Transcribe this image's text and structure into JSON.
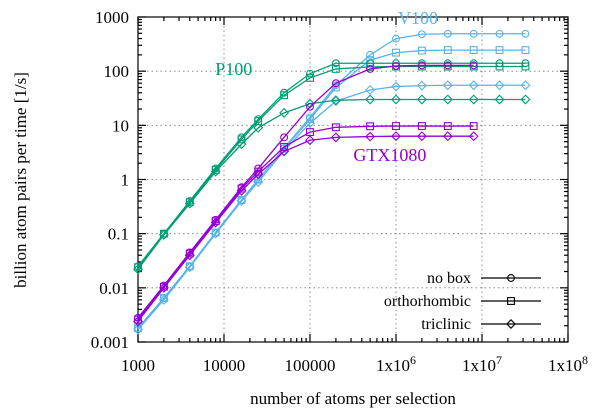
{
  "chart_data": {
    "type": "line",
    "xlabel": "number of atoms per selection",
    "ylabel": "billion atom pairs per time [1/s]",
    "xscale": "log",
    "yscale": "log",
    "xlim": [
      1000,
      100000000
    ],
    "ylim": [
      0.001,
      1000
    ],
    "grid": true,
    "legend_position": "bottom-right",
    "x_ticks": [
      {
        "value": 1000,
        "base": "1000",
        "exp": ""
      },
      {
        "value": 10000,
        "base": "10000",
        "exp": ""
      },
      {
        "value": 100000,
        "base": "100000",
        "exp": ""
      },
      {
        "value": 1000000,
        "base": "1x10",
        "exp": "6"
      },
      {
        "value": 10000000,
        "base": "1x10",
        "exp": "7"
      },
      {
        "value": 100000000,
        "base": "1x10",
        "exp": "8"
      }
    ],
    "y_ticks": [
      {
        "value": 0.001,
        "label": "0.001"
      },
      {
        "value": 0.01,
        "label": "0.01"
      },
      {
        "value": 0.1,
        "label": "0.1"
      },
      {
        "value": 1,
        "label": "1"
      },
      {
        "value": 10,
        "label": "10"
      },
      {
        "value": 100,
        "label": "100"
      },
      {
        "value": 1000,
        "label": "1000"
      }
    ],
    "legend": [
      {
        "label": "no box",
        "marker": "circle"
      },
      {
        "label": "orthorhombic",
        "marker": "square"
      },
      {
        "label": "triclinic",
        "marker": "diamond"
      }
    ],
    "gpu_labels": [
      {
        "text": "V100",
        "color": "#56b4e9",
        "x": 1800000,
        "y": 750
      },
      {
        "text": "P100",
        "color": "#009e73",
        "x": 13000,
        "y": 85
      },
      {
        "text": "GTX1080",
        "color": "#9400d3",
        "x": 850000,
        "y": 2.2
      }
    ],
    "series": [
      {
        "gpu": "V100",
        "box": "no box",
        "marker": "circle",
        "color": "#56b4e9",
        "x": [
          1000,
          2000,
          4000,
          8000,
          16000,
          25000,
          50000,
          100000,
          200000,
          500000,
          1000000,
          2000000,
          4000000,
          8000000,
          16000000,
          32000000
        ],
        "y": [
          0.0018,
          0.0065,
          0.025,
          0.105,
          0.42,
          1.0,
          3.8,
          14,
          55,
          200,
          400,
          480,
          490,
          490,
          490,
          490
        ]
      },
      {
        "gpu": "V100",
        "box": "orthorhombic",
        "marker": "square",
        "color": "#56b4e9",
        "x": [
          1000,
          2000,
          4000,
          8000,
          16000,
          25000,
          50000,
          100000,
          200000,
          500000,
          1000000,
          2000000,
          4000000,
          8000000,
          16000000,
          32000000
        ],
        "y": [
          0.0018,
          0.0065,
          0.025,
          0.105,
          0.42,
          1.0,
          3.7,
          13,
          50,
          160,
          220,
          240,
          245,
          245,
          245,
          245
        ]
      },
      {
        "gpu": "V100",
        "box": "triclinic",
        "marker": "diamond",
        "color": "#56b4e9",
        "x": [
          1000,
          2000,
          4000,
          8000,
          16000,
          25000,
          50000,
          100000,
          200000,
          500000,
          1000000,
          2000000,
          4000000,
          8000000,
          16000000,
          32000000
        ],
        "y": [
          0.0017,
          0.006,
          0.024,
          0.1,
          0.4,
          0.9,
          3.4,
          11,
          28,
          45,
          52,
          54,
          55,
          55,
          55,
          55
        ]
      },
      {
        "gpu": "P100",
        "box": "no box",
        "marker": "circle",
        "color": "#009e73",
        "x": [
          1000,
          2000,
          4000,
          8000,
          16000,
          25000,
          50000,
          100000,
          200000,
          500000,
          1000000,
          2000000,
          4000000,
          8000000,
          16000000,
          32000000
        ],
        "y": [
          0.025,
          0.1,
          0.4,
          1.6,
          6.0,
          13,
          40,
          90,
          140,
          140,
          140,
          140,
          140,
          140,
          140,
          140
        ]
      },
      {
        "gpu": "P100",
        "box": "orthorhombic",
        "marker": "square",
        "color": "#009e73",
        "x": [
          1000,
          2000,
          4000,
          8000,
          16000,
          25000,
          50000,
          100000,
          200000,
          500000,
          1000000,
          2000000,
          4000000,
          8000000,
          16000000,
          32000000
        ],
        "y": [
          0.024,
          0.1,
          0.38,
          1.5,
          5.5,
          12,
          36,
          75,
          110,
          120,
          122,
          122,
          122,
          122,
          122,
          122
        ]
      },
      {
        "gpu": "P100",
        "box": "triclinic",
        "marker": "diamond",
        "color": "#009e73",
        "x": [
          1000,
          2000,
          4000,
          8000,
          16000,
          25000,
          50000,
          100000,
          200000,
          500000,
          1000000,
          2000000,
          4000000,
          8000000,
          16000000,
          32000000
        ],
        "y": [
          0.022,
          0.095,
          0.36,
          1.4,
          4.5,
          9,
          17,
          25,
          29,
          30,
          30,
          30,
          30,
          30,
          30,
          30
        ]
      },
      {
        "gpu": "GTX1080",
        "box": "no box",
        "marker": "circle",
        "color": "#9400d3",
        "x": [
          1000,
          2000,
          4000,
          8000,
          16000,
          25000,
          50000,
          100000,
          200000,
          500000,
          1000000,
          2000000,
          4000000,
          8000000
        ],
        "y": [
          0.0028,
          0.011,
          0.045,
          0.18,
          0.72,
          1.6,
          6.0,
          22,
          60,
          110,
          125,
          128,
          128,
          128
        ]
      },
      {
        "gpu": "GTX1080",
        "box": "orthorhombic",
        "marker": "square",
        "color": "#9400d3",
        "x": [
          1000,
          2000,
          4000,
          8000,
          16000,
          25000,
          50000,
          100000,
          200000,
          500000,
          1000000,
          2000000,
          4000000,
          8000000
        ],
        "y": [
          0.0026,
          0.0105,
          0.043,
          0.17,
          0.68,
          1.4,
          4.0,
          7.5,
          9.2,
          9.6,
          9.7,
          9.7,
          9.7,
          9.7
        ]
      },
      {
        "gpu": "GTX1080",
        "box": "triclinic",
        "marker": "diamond",
        "color": "#9400d3",
        "x": [
          1000,
          2000,
          4000,
          8000,
          16000,
          25000,
          50000,
          100000,
          200000,
          500000,
          1000000,
          2000000,
          4000000,
          8000000
        ],
        "y": [
          0.0024,
          0.01,
          0.04,
          0.16,
          0.62,
          1.25,
          3.3,
          5.3,
          6.0,
          6.2,
          6.3,
          6.3,
          6.3,
          6.3
        ]
      }
    ]
  }
}
